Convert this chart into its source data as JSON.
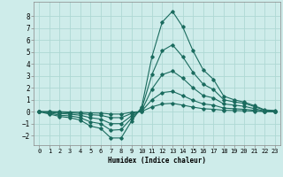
{
  "xlabel": "Humidex (Indice chaleur)",
  "xlim": [
    -0.5,
    23.5
  ],
  "ylim": [
    -2.8,
    9.2
  ],
  "yticks": [
    -2,
    -1,
    0,
    1,
    2,
    3,
    4,
    5,
    6,
    7,
    8
  ],
  "xticks": [
    0,
    1,
    2,
    3,
    4,
    5,
    6,
    7,
    8,
    9,
    10,
    11,
    12,
    13,
    14,
    15,
    16,
    17,
    18,
    19,
    20,
    21,
    22,
    23
  ],
  "background_color": "#ceecea",
  "grid_color": "#aed8d4",
  "line_color": "#1a6b5e",
  "curves": [
    [
      0.0,
      -0.2,
      -0.4,
      -0.5,
      -0.7,
      -1.2,
      -1.4,
      -2.2,
      -2.2,
      -0.8,
      0.4,
      4.6,
      7.5,
      8.4,
      7.1,
      5.1,
      3.5,
      2.7,
      1.3,
      1.0,
      0.8,
      0.5,
      0.15,
      0.1
    ],
    [
      0.0,
      -0.1,
      -0.3,
      -0.35,
      -0.5,
      -0.85,
      -1.0,
      -1.55,
      -1.5,
      -0.55,
      0.25,
      3.1,
      5.1,
      5.6,
      4.6,
      3.3,
      2.3,
      1.85,
      1.0,
      0.82,
      0.7,
      0.42,
      0.12,
      0.05
    ],
    [
      0.0,
      -0.05,
      -0.15,
      -0.2,
      -0.3,
      -0.5,
      -0.62,
      -1.0,
      -1.0,
      -0.35,
      0.1,
      1.9,
      3.1,
      3.4,
      2.8,
      2.0,
      1.35,
      1.15,
      0.65,
      0.55,
      0.45,
      0.25,
      0.05,
      0.02
    ],
    [
      0.0,
      0.0,
      -0.05,
      -0.1,
      -0.15,
      -0.25,
      -0.3,
      -0.5,
      -0.5,
      -0.15,
      0.05,
      1.0,
      1.6,
      1.7,
      1.35,
      0.95,
      0.65,
      0.55,
      0.3,
      0.25,
      0.2,
      0.12,
      0.02,
      0.01
    ],
    [
      0.0,
      0.0,
      0.0,
      -0.03,
      -0.05,
      -0.1,
      -0.12,
      -0.2,
      -0.2,
      -0.05,
      0.02,
      0.4,
      0.65,
      0.7,
      0.55,
      0.38,
      0.25,
      0.2,
      0.12,
      0.1,
      0.08,
      0.05,
      0.01,
      0.0
    ]
  ]
}
